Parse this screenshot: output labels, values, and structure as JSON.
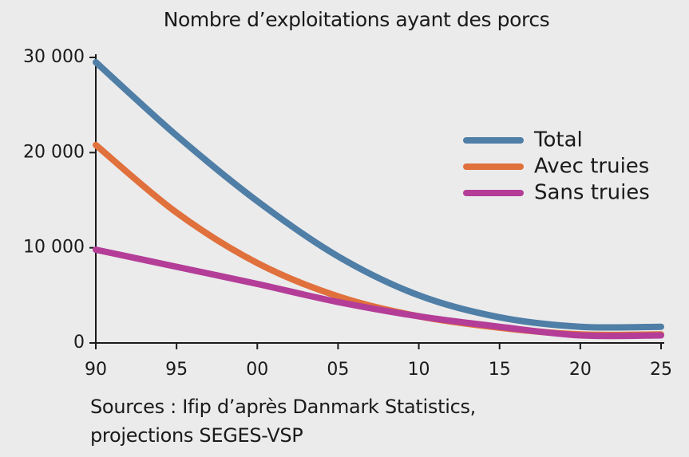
{
  "chart_data": {
    "type": "line",
    "title": "Nombre d’exploitations ayant des porcs",
    "xlabel": "",
    "ylabel": "",
    "x": [
      1990,
      1995,
      2000,
      2005,
      2010,
      2015,
      2020,
      2025
    ],
    "x_tick_labels": [
      "90",
      "95",
      "00",
      "05",
      "10",
      "15",
      "20",
      "25"
    ],
    "y_ticks": [
      0,
      10000,
      20000,
      30000
    ],
    "y_tick_labels": [
      "0",
      "10 000",
      "20 000",
      "30 000"
    ],
    "xlim": [
      1990,
      2025
    ],
    "ylim": [
      0,
      30000
    ],
    "grid": false,
    "legend_position": "right",
    "series": [
      {
        "name": "Total",
        "color": "#4f7ea6",
        "values": [
          29500,
          21800,
          14900,
          9100,
          5000,
          2700,
          1700,
          1700
        ]
      },
      {
        "name": "Avec truies",
        "color": "#e0703c",
        "values": [
          20800,
          13700,
          8400,
          4900,
          2800,
          1600,
          900,
          900
        ]
      },
      {
        "name": "Sans truies",
        "color": "#b43d98",
        "values": [
          9800,
          8000,
          6200,
          4300,
          2800,
          1700,
          800,
          800
        ]
      }
    ]
  },
  "source": {
    "line1": "Sources : Ifip d’après Danmark Statistics,",
    "line2": "projections SEGES-VSP"
  }
}
